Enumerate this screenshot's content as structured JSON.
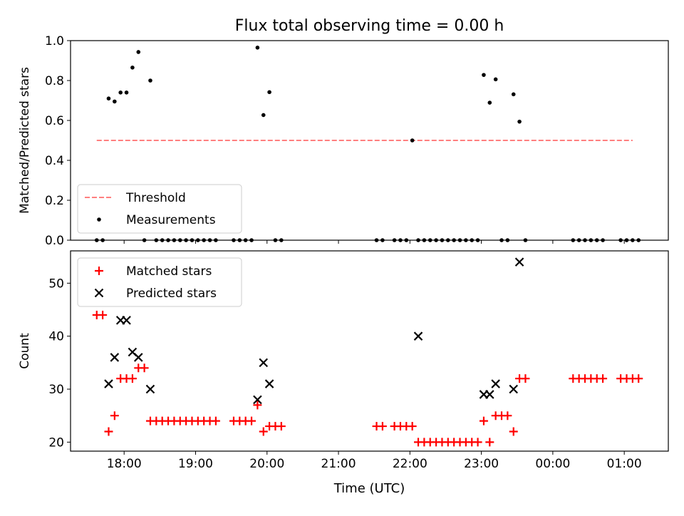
{
  "figure": {
    "title": "Flux total observing time = 0.00 h",
    "xlabel": "Time (UTC)"
  },
  "colors": {
    "threshold": "#ff7f7f",
    "measurements": "#000000",
    "matched": "#ff0000",
    "predicted": "#000000"
  },
  "chart_data": [
    {
      "type": "scatter",
      "ylabel": "Matched/Predicted stars",
      "ylim": [
        0.0,
        1.0
      ],
      "yticks": [
        "0.0",
        "0.2",
        "0.4",
        "0.6",
        "0.8",
        "1.0"
      ],
      "xlim": [
        "17:15",
        "01:37"
      ],
      "xticks": [
        "18:00",
        "19:00",
        "20:00",
        "21:00",
        "22:00",
        "23:00",
        "00:00",
        "01:00"
      ],
      "xticklabels_shown": false,
      "legend": {
        "position": "lower-left",
        "entries": [
          "Threshold",
          "Measurements"
        ]
      },
      "threshold": {
        "name": "Threshold",
        "x": [
          "17:37",
          "01:07"
        ],
        "y": 0.5,
        "style": "dashed"
      },
      "series": [
        {
          "name": "Measurements",
          "marker": "dot",
          "x": [
            "17:37",
            "17:42",
            "17:47",
            "17:52",
            "17:57",
            "18:02",
            "18:07",
            "18:12",
            "18:17",
            "18:22",
            "18:27",
            "18:32",
            "18:37",
            "18:42",
            "18:47",
            "18:52",
            "18:57",
            "19:02",
            "19:07",
            "19:12",
            "19:17",
            "19:32",
            "19:37",
            "19:42",
            "19:47",
            "19:52",
            "19:57",
            "20:02",
            "20:07",
            "20:12",
            "21:32",
            "21:37",
            "21:47",
            "21:52",
            "21:57",
            "22:02",
            "22:07",
            "22:12",
            "22:17",
            "22:22",
            "22:27",
            "22:32",
            "22:37",
            "22:42",
            "22:47",
            "22:52",
            "22:57",
            "23:02",
            "23:07",
            "23:12",
            "23:17",
            "23:22",
            "23:27",
            "23:32",
            "23:37",
            "00:17",
            "00:22",
            "00:27",
            "00:32",
            "00:37",
            "00:42",
            "00:57",
            "01:02",
            "01:07",
            "01:12"
          ],
          "y": [
            0,
            0,
            0.71,
            0.695,
            0.74,
            0.74,
            0.865,
            0.943,
            0,
            0.8,
            0,
            0,
            0,
            0,
            0,
            0,
            0,
            0,
            0,
            0,
            0,
            0,
            0,
            0,
            0,
            0.965,
            0.627,
            0.742,
            0,
            0,
            0,
            0,
            0,
            0,
            0,
            0.5,
            0,
            0,
            0,
            0,
            0,
            0,
            0,
            0,
            0,
            0,
            0,
            0.828,
            0.689,
            0.806,
            0,
            0,
            0.731,
            0.594,
            0,
            0,
            0,
            0,
            0,
            0,
            0,
            0,
            0,
            0,
            0
          ]
        }
      ]
    },
    {
      "type": "scatter",
      "ylabel": "Count",
      "ylim": [
        18.3,
        56.1
      ],
      "yticks": [
        "20",
        "30",
        "40",
        "50"
      ],
      "xlim": [
        "17:15",
        "01:37"
      ],
      "xticks": [
        "18:00",
        "19:00",
        "20:00",
        "21:00",
        "22:00",
        "23:00",
        "00:00",
        "01:00"
      ],
      "legend": {
        "position": "top-left",
        "entries": [
          "Matched stars",
          "Predicted stars"
        ]
      },
      "series": [
        {
          "name": "Matched stars",
          "marker": "plus",
          "x": [
            "17:37",
            "17:42",
            "17:47",
            "17:52",
            "17:57",
            "18:02",
            "18:07",
            "18:12",
            "18:17",
            "18:22",
            "18:27",
            "18:32",
            "18:37",
            "18:42",
            "18:47",
            "18:52",
            "18:57",
            "19:02",
            "19:07",
            "19:12",
            "19:17",
            "19:32",
            "19:37",
            "19:42",
            "19:47",
            "19:52",
            "19:57",
            "20:02",
            "20:07",
            "20:12",
            "21:32",
            "21:37",
            "21:47",
            "21:52",
            "21:57",
            "22:02",
            "22:07",
            "22:12",
            "22:17",
            "22:22",
            "22:27",
            "22:32",
            "22:37",
            "22:42",
            "22:47",
            "22:52",
            "22:57",
            "23:02",
            "23:07",
            "23:12",
            "23:17",
            "23:22",
            "23:27",
            "23:32",
            "23:37",
            "00:17",
            "00:22",
            "00:27",
            "00:32",
            "00:37",
            "00:42",
            "00:57",
            "01:02",
            "01:07",
            "01:12"
          ],
          "y": [
            44,
            44,
            22,
            25,
            32,
            32,
            32,
            34,
            34,
            24,
            24,
            24,
            24,
            24,
            24,
            24,
            24,
            24,
            24,
            24,
            24,
            24,
            24,
            24,
            24,
            27,
            22,
            23,
            23,
            23,
            23,
            23,
            23,
            23,
            23,
            23,
            20,
            20,
            20,
            20,
            20,
            20,
            20,
            20,
            20,
            20,
            20,
            24,
            20,
            25,
            25,
            25,
            22,
            32,
            32,
            32,
            32,
            32,
            32,
            32,
            32,
            32,
            32,
            32,
            32
          ]
        },
        {
          "name": "Predicted stars",
          "marker": "x",
          "x": [
            "17:47",
            "17:52",
            "17:57",
            "18:02",
            "18:07",
            "18:12",
            "18:22",
            "19:52",
            "19:57",
            "20:02",
            "22:07",
            "23:02",
            "23:07",
            "23:12",
            "23:27",
            "23:32"
          ],
          "y": [
            31,
            36,
            43,
            43,
            37,
            36,
            30,
            28,
            35,
            31,
            40,
            29,
            29,
            31,
            30,
            54
          ]
        }
      ]
    }
  ]
}
